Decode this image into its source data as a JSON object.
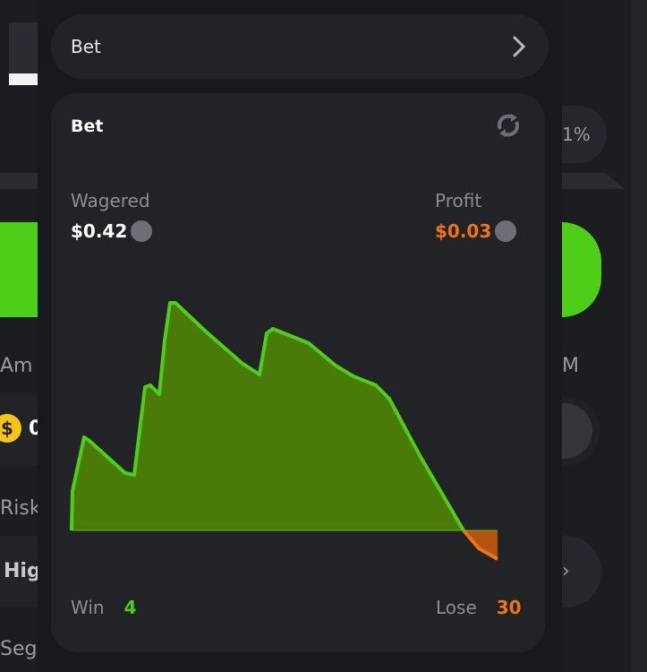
{
  "background": {
    "left_labels": [
      "Am",
      "Risk",
      "Seg"
    ],
    "left_risk_value": "Hig",
    "left_amount_value": "0",
    "right_percent": "1%",
    "right_label": "M"
  },
  "bet_row": {
    "label": "Bet",
    "icon": "chevron-right-icon"
  },
  "card": {
    "title": "Bet",
    "refresh_icon": "refresh-icon",
    "wagered_label": "Wagered",
    "wagered_value": "$0.42",
    "profit_label": "Profit",
    "profit_value": "$0.03",
    "token_icon": "stellar-icon",
    "win_label": "Win",
    "win_value": "4",
    "lose_label": "Lose",
    "lose_value": "30"
  },
  "colors": {
    "win": "#4fce19",
    "win_fill": "#4a7a08",
    "lose": "#f07316",
    "lose_fill": "#b55310",
    "background": "#18191c",
    "card": "#222327"
  },
  "chart_data": {
    "type": "area",
    "title": "",
    "xlabel": "",
    "ylabel": "",
    "baseline": 0,
    "values": [
      0,
      44,
      104,
      100,
      82,
      64,
      62,
      160,
      162,
      152,
      212,
      254,
      254,
      222,
      187,
      174,
      220,
      225,
      209,
      184,
      172,
      162,
      147,
      82,
      0,
      -20,
      -32
    ]
  }
}
